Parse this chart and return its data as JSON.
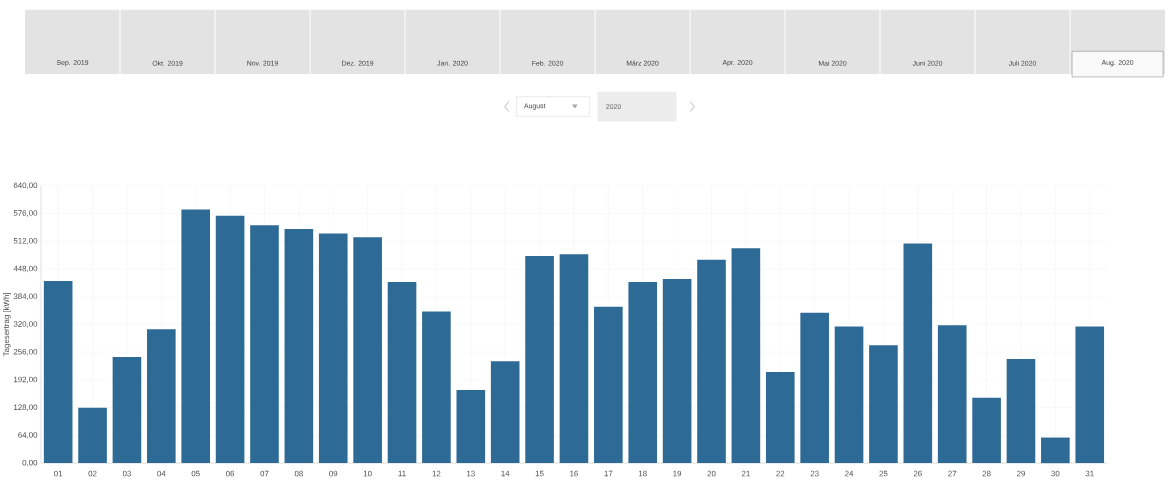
{
  "chart_data": {
    "type": "bar",
    "ylabel": "Tagesertrag [kWh]",
    "categories": [
      "01",
      "02",
      "03",
      "04",
      "05",
      "06",
      "07",
      "08",
      "09",
      "10",
      "11",
      "12",
      "13",
      "14",
      "15",
      "16",
      "17",
      "18",
      "19",
      "20",
      "21",
      "22",
      "23",
      "24",
      "25",
      "26",
      "27",
      "28",
      "29",
      "30",
      "31"
    ],
    "values": [
      420,
      128,
      245,
      309,
      585,
      571,
      549,
      540,
      530,
      521,
      418,
      350,
      169,
      235,
      478,
      482,
      361,
      418,
      425,
      469,
      496,
      210,
      347,
      315,
      272,
      507,
      318,
      151,
      240,
      59,
      315
    ],
    "color": "#2e6a96",
    "ylim": [
      0,
      640
    ],
    "yticks": [
      {
        "value": 0,
        "label": "0,00"
      },
      {
        "value": 64,
        "label": "64,00"
      },
      {
        "value": 128,
        "label": "128,00"
      },
      {
        "value": 192,
        "label": "192,00"
      },
      {
        "value": 256,
        "label": "256,00"
      },
      {
        "value": 320,
        "label": "320,00"
      },
      {
        "value": 384,
        "label": "384,00"
      },
      {
        "value": 448,
        "label": "448,00"
      },
      {
        "value": 512,
        "label": "512,00"
      },
      {
        "value": 576,
        "label": "576,00"
      },
      {
        "value": 640,
        "label": "640,00"
      }
    ],
    "grid": true,
    "annotations": [
      "Sep. 2019",
      "Okt. 2019",
      "Nov. 2019",
      "Dez. 2019",
      "Jan. 2020",
      "Feb. 2020",
      "März 2020",
      "Apr. 2020",
      "Mai 2020",
      "Juni 2020",
      "Juli 2020",
      "Aug. 2020",
      "August",
      "2020"
    ]
  }
}
